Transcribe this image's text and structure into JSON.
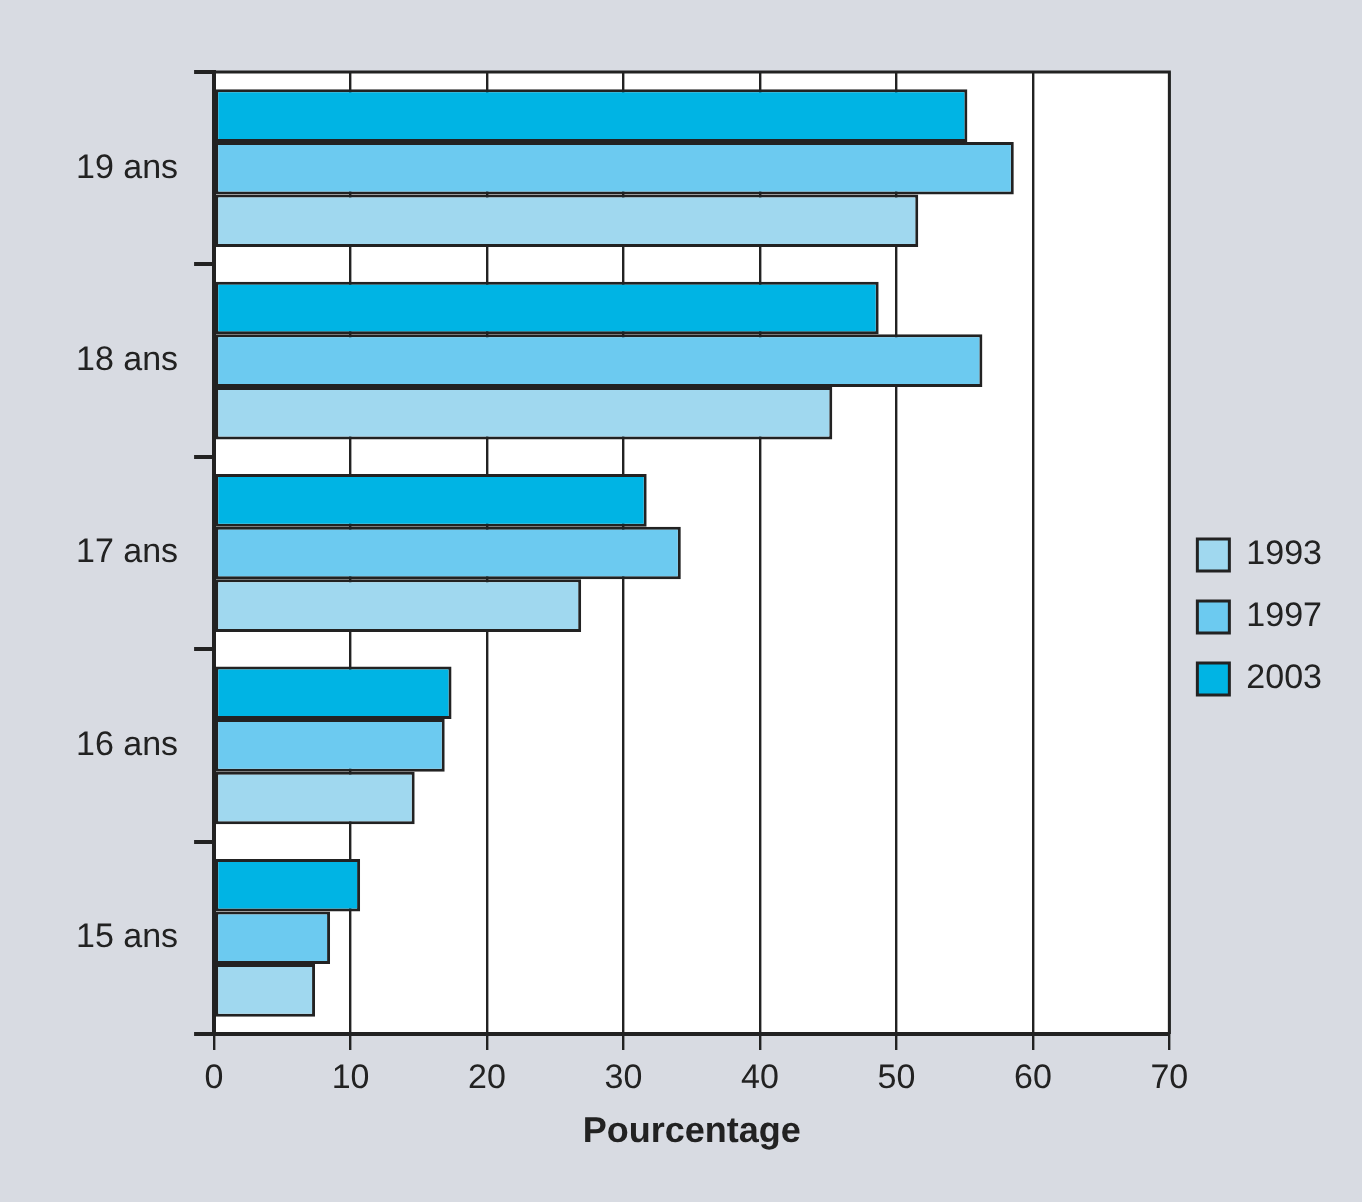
{
  "chart_data": {
    "type": "bar",
    "orientation": "horizontal",
    "xlabel": "Pourcentage",
    "categories": [
      "19 ans",
      "18 ans",
      "17 ans",
      "16 ans",
      "15 ans"
    ],
    "series": [
      {
        "name": "1993",
        "color": "#a0d8ef",
        "values": [
          51.6,
          45.3,
          26.9,
          14.7,
          7.4
        ]
      },
      {
        "name": "1997",
        "color": "#6ccaf0",
        "values": [
          58.6,
          56.3,
          34.2,
          16.9,
          8.5
        ]
      },
      {
        "name": "2003",
        "color": "#00b4e4",
        "values": [
          55.2,
          48.7,
          31.7,
          17.4,
          10.7
        ]
      }
    ],
    "xlim": [
      0,
      70
    ],
    "xticks": [
      0,
      10,
      20,
      30,
      40,
      50,
      60,
      70
    ],
    "grid": "x",
    "legend": "right"
  }
}
